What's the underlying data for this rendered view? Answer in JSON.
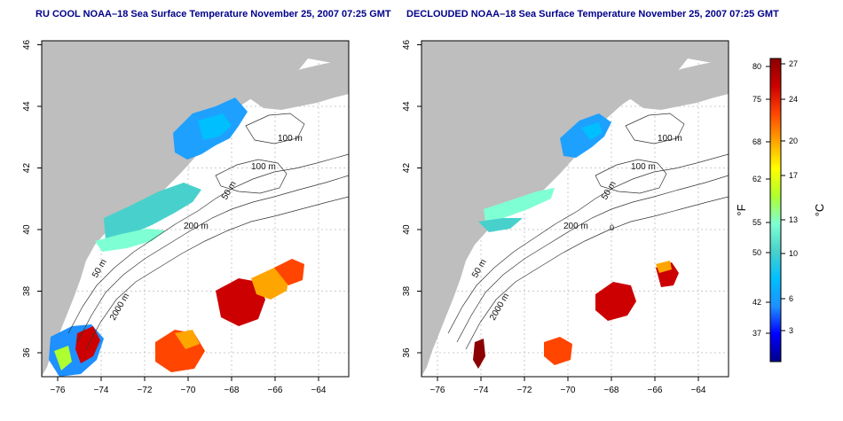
{
  "titles": {
    "left": "RU COOL NOAA–18 Sea Surface Temperature November 25, 2007 07:25 GMT",
    "right": "DECLOUDED NOAA–18 Sea Surface Temperature November 25, 2007 07:25 GMT"
  },
  "axes": {
    "x_ticks": [
      "−76",
      "−74",
      "−72",
      "−70",
      "−68",
      "−66",
      "−64"
    ],
    "y_ticks": [
      "36",
      "38",
      "40",
      "42",
      "44",
      "46"
    ]
  },
  "contour_labels": {
    "m100a": "100 m",
    "m100b": "100 m",
    "m50a": "50 m",
    "m200": "200 m",
    "m50b": "50 m",
    "m2000": "2000 m",
    "zero": "0"
  },
  "colorbar": {
    "f_unit": "°F",
    "c_unit": "°C",
    "f_ticks": [
      "80",
      "75",
      "68",
      "62",
      "55",
      "50",
      "42",
      "37"
    ],
    "c_ticks": [
      "27",
      "24",
      "20",
      "17",
      "13",
      "10",
      "6",
      "3"
    ],
    "colors": [
      "#00008b",
      "#0000ff",
      "#1e90ff",
      "#00bfff",
      "#48d1cc",
      "#7fffd4",
      "#adff2f",
      "#ffff00",
      "#ffa500",
      "#ff4500",
      "#cc0000",
      "#8b0000"
    ]
  },
  "land_color": "#bebebe",
  "grid_color": "#bbbbbb"
}
